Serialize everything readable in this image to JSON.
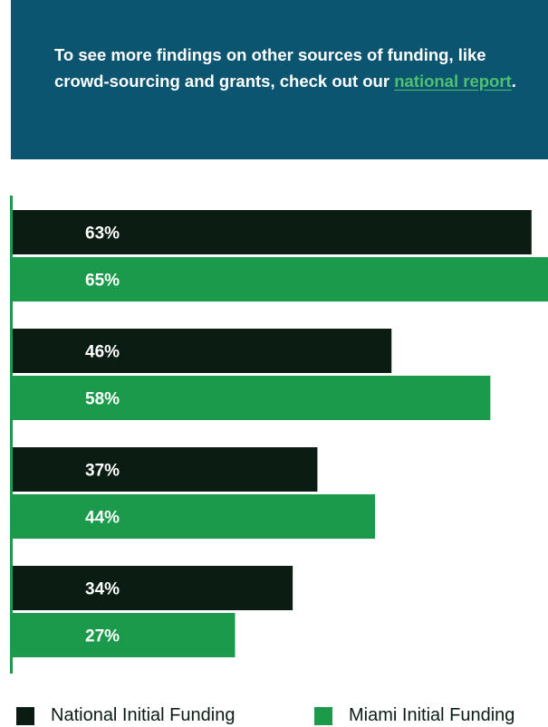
{
  "callout": {
    "text_before": "To see more findings on other sources of funding, like crowd-sourcing and grants, check out our ",
    "link_text": "national report",
    "text_after": "."
  },
  "colors": {
    "callout_bg": "#0c5570",
    "link": "#4fc070",
    "national": "#0b1c13",
    "miami": "#1c9a4b",
    "axis": "#1c9a4b"
  },
  "chart_data": {
    "type": "bar",
    "orientation": "horizontal",
    "xlim": [
      0,
      65
    ],
    "grid": false,
    "legend_position": "bottom",
    "series": [
      {
        "name": "National Initial Funding",
        "values": [
          63,
          46,
          37,
          34
        ],
        "labels": [
          "63%",
          "46%",
          "37%",
          "34%"
        ]
      },
      {
        "name": "Miami Initial Funding",
        "values": [
          65,
          58,
          44,
          27
        ],
        "labels": [
          "65%",
          "58%",
          "44%",
          "27%"
        ]
      }
    ]
  }
}
